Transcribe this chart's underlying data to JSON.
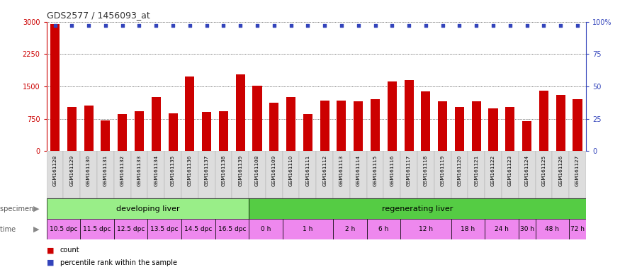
{
  "title": "GDS2577 / 1456093_at",
  "samples": [
    "GSM161128",
    "GSM161129",
    "GSM161130",
    "GSM161131",
    "GSM161132",
    "GSM161133",
    "GSM161134",
    "GSM161135",
    "GSM161136",
    "GSM161137",
    "GSM161138",
    "GSM161139",
    "GSM161108",
    "GSM161109",
    "GSM161110",
    "GSM161111",
    "GSM161112",
    "GSM161113",
    "GSM161114",
    "GSM161115",
    "GSM161116",
    "GSM161117",
    "GSM161118",
    "GSM161119",
    "GSM161120",
    "GSM161121",
    "GSM161122",
    "GSM161123",
    "GSM161124",
    "GSM161125",
    "GSM161126",
    "GSM161127"
  ],
  "counts": [
    2940,
    1020,
    1060,
    710,
    850,
    920,
    1250,
    870,
    1730,
    900,
    920,
    1780,
    1520,
    1120,
    1260,
    860,
    1170,
    1170,
    1160,
    1200,
    1620,
    1650,
    1390,
    1150,
    1020,
    1160,
    990,
    1020,
    690,
    1400,
    1300,
    1200
  ],
  "percentile": [
    97,
    97,
    97,
    97,
    97,
    97,
    97,
    97,
    97,
    97,
    97,
    97,
    97,
    97,
    97,
    97,
    97,
    97,
    97,
    97,
    97,
    97,
    97,
    97,
    97,
    97,
    97,
    97,
    97,
    97,
    97,
    97
  ],
  "bar_color": "#cc0000",
  "dot_color": "#3344bb",
  "ylim_left": [
    0,
    3000
  ],
  "ylim_right": [
    0,
    100
  ],
  "yticks_left": [
    0,
    750,
    1500,
    2250,
    3000
  ],
  "yticks_right": [
    0,
    25,
    50,
    75,
    100
  ],
  "specimen_groups": [
    {
      "label": "developing liver",
      "start": 0,
      "end": 12,
      "color": "#99ee88"
    },
    {
      "label": "regenerating liver",
      "start": 12,
      "end": 32,
      "color": "#55cc44"
    }
  ],
  "time_labels": [
    {
      "label": "10.5 dpc",
      "start": 0,
      "end": 2,
      "dpc": true
    },
    {
      "label": "11.5 dpc",
      "start": 2,
      "end": 4,
      "dpc": true
    },
    {
      "label": "12.5 dpc",
      "start": 4,
      "end": 6,
      "dpc": true
    },
    {
      "label": "13.5 dpc",
      "start": 6,
      "end": 8,
      "dpc": true
    },
    {
      "label": "14.5 dpc",
      "start": 8,
      "end": 10,
      "dpc": true
    },
    {
      "label": "16.5 dpc",
      "start": 10,
      "end": 12,
      "dpc": true
    },
    {
      "label": "0 h",
      "start": 12,
      "end": 14,
      "dpc": false
    },
    {
      "label": "1 h",
      "start": 14,
      "end": 17,
      "dpc": false
    },
    {
      "label": "2 h",
      "start": 17,
      "end": 19,
      "dpc": false
    },
    {
      "label": "6 h",
      "start": 19,
      "end": 21,
      "dpc": false
    },
    {
      "label": "12 h",
      "start": 21,
      "end": 24,
      "dpc": false
    },
    {
      "label": "18 h",
      "start": 24,
      "end": 26,
      "dpc": false
    },
    {
      "label": "24 h",
      "start": 26,
      "end": 28,
      "dpc": false
    },
    {
      "label": "30 h",
      "start": 28,
      "end": 29,
      "dpc": false
    },
    {
      "label": "48 h",
      "start": 29,
      "end": 31,
      "dpc": false
    },
    {
      "label": "72 h",
      "start": 31,
      "end": 32,
      "dpc": false
    }
  ],
  "time_color_dpc": "#ee88ee",
  "time_color_h": "#ee88ee",
  "left_axis_color": "#cc0000",
  "right_axis_color": "#3344bb",
  "grid_color": "#666666",
  "xtick_bg": "#dddddd"
}
